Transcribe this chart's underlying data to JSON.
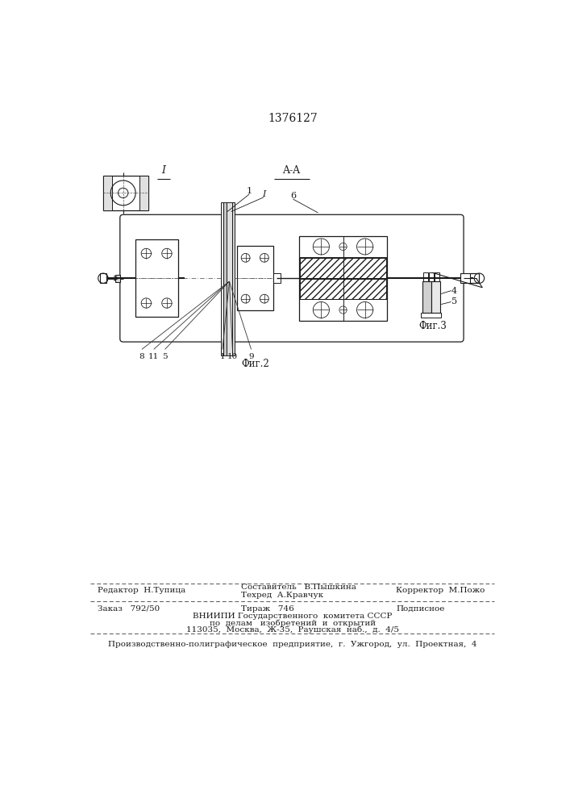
{
  "patent_number": "1376127",
  "bg_color": "#ffffff",
  "line_color": "#1a1a1a",
  "fig1_label": "I",
  "fig2_label": "Фиг.2",
  "fig3_label": "Фиг.3",
  "section_label": "A-A",
  "footer_editor": "Редактор  Н.Тупица",
  "footer_compiler": "Составитель   В.Пышкина",
  "footer_techred": "Техред  А.Кравчук",
  "footer_corrector": "Корректор  М.Пожо",
  "footer_order": "Заказ   792/50",
  "footer_tirazh": "Тираж   746",
  "footer_podpisnoe": "Подписное",
  "footer_vniipи": "ВНИИПИ Государственного  комитета СССР",
  "footer_po_delam": "по  делам   изобретений  и  открытий",
  "footer_address": "113035,  Москва,  Ж-35,  Раушская  наб.,  д.  4/5",
  "footer_proizv": "Производственно-полиграфическое  предприятие,  г.  Ужгород,  ул.  Проектная,  4"
}
